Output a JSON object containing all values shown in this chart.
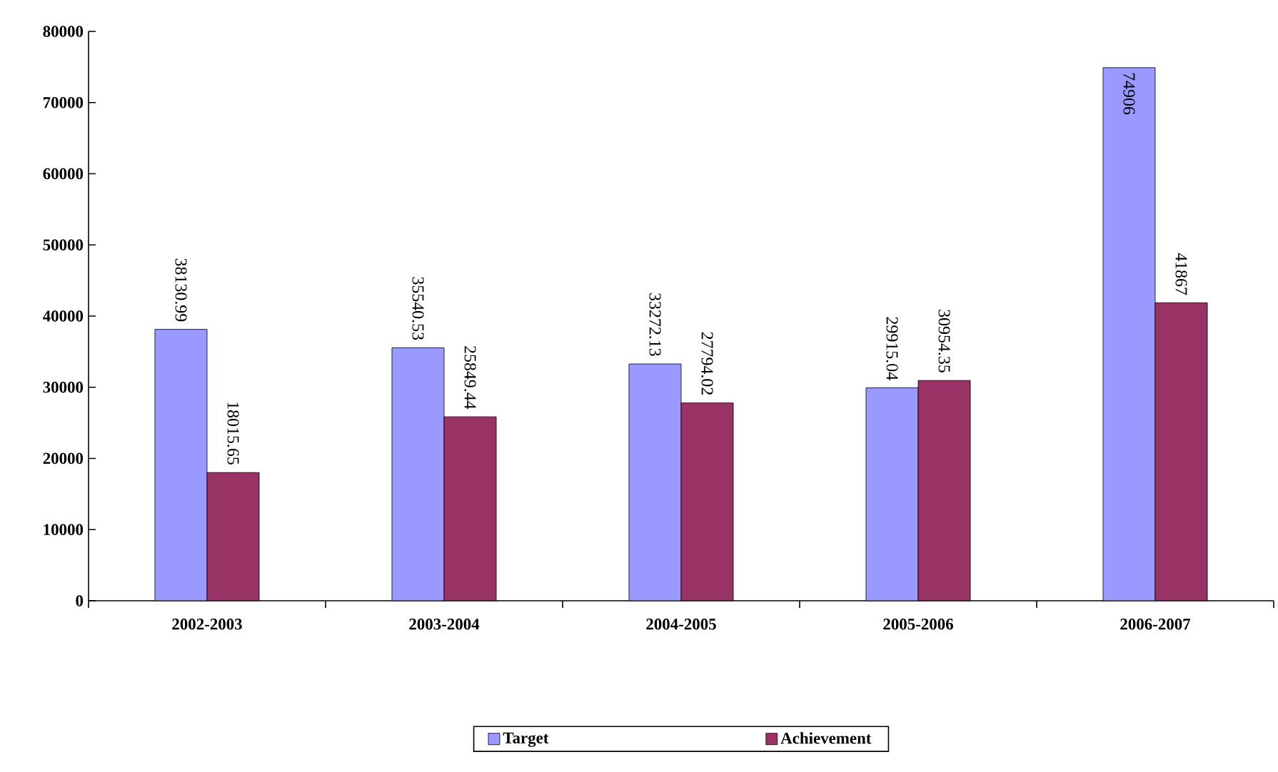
{
  "chart_data": {
    "type": "bar",
    "categories": [
      "2002-2003",
      "2003-2004",
      "2004-2005",
      "2005-2006",
      "2006-2007"
    ],
    "series": [
      {
        "name": "Target",
        "color": "#9999ff",
        "values": [
          38130.99,
          35540.53,
          33272.13,
          29915.04,
          74906
        ]
      },
      {
        "name": "Achievement",
        "color": "#993366",
        "values": [
          18015.65,
          25849.44,
          27794.02,
          30954.35,
          41867
        ]
      }
    ],
    "ylim": [
      0,
      80000
    ],
    "yticks": [
      0,
      10000,
      20000,
      30000,
      40000,
      50000,
      60000,
      70000,
      80000
    ],
    "data_labels": true,
    "legend": "bottom",
    "grid": false
  }
}
